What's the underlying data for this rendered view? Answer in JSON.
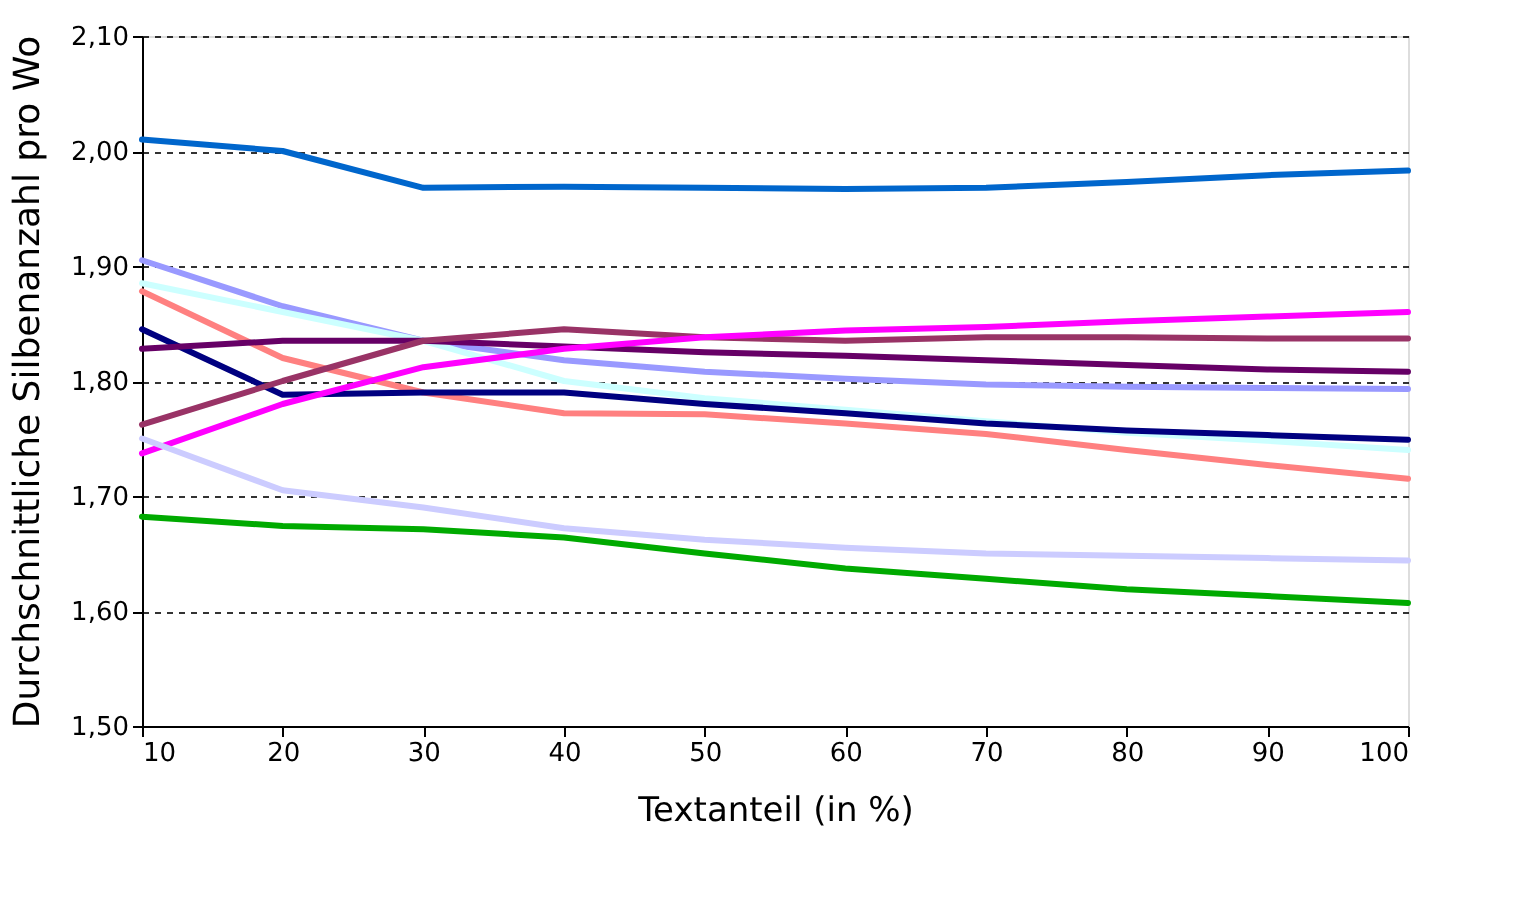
{
  "chart_data": {
    "type": "line",
    "xlabel": "Textanteil (in %)",
    "ylabel": "Durchschnittliche Silbenanzahl pro Wo",
    "x": [
      10,
      20,
      30,
      40,
      50,
      60,
      70,
      80,
      90,
      100
    ],
    "xlim": [
      10,
      100
    ],
    "xticks": [
      10,
      20,
      30,
      40,
      50,
      60,
      70,
      80,
      90,
      100
    ],
    "ylim": [
      1.5,
      2.1
    ],
    "yticks": [
      {
        "value": 1.5,
        "label": "1,50"
      },
      {
        "value": 1.6,
        "label": "1,60"
      },
      {
        "value": 1.7,
        "label": "1,70"
      },
      {
        "value": 1.8,
        "label": "1,80"
      },
      {
        "value": 1.9,
        "label": "1,90"
      },
      {
        "value": 2.0,
        "label": "2,00"
      },
      {
        "value": 2.1,
        "label": "2,10"
      }
    ],
    "grid": "y",
    "legend": false,
    "marker": "none",
    "line_style": "solid",
    "series": [
      {
        "color": "#0066cc",
        "values": [
          2.01,
          2.0,
          1.968,
          1.969,
          1.968,
          1.967,
          1.968,
          1.973,
          1.979,
          1.983
        ]
      },
      {
        "color": "#9999ff",
        "values": [
          1.905,
          1.865,
          1.835,
          1.818,
          1.808,
          1.802,
          1.797,
          1.795,
          1.794,
          1.793
        ]
      },
      {
        "color": "#ccffff",
        "values": [
          1.885,
          1.86,
          1.835,
          1.8,
          1.785,
          1.775,
          1.765,
          1.755,
          1.748,
          1.74
        ]
      },
      {
        "color": "#ff8080",
        "values": [
          1.878,
          1.82,
          1.79,
          1.772,
          1.771,
          1.763,
          1.754,
          1.74,
          1.727,
          1.715
        ]
      },
      {
        "color": "#000080",
        "values": [
          1.845,
          1.788,
          1.79,
          1.79,
          1.78,
          1.772,
          1.763,
          1.757,
          1.753,
          1.749
        ]
      },
      {
        "color": "#660066",
        "values": [
          1.828,
          1.835,
          1.835,
          1.83,
          1.825,
          1.822,
          1.818,
          1.814,
          1.81,
          1.808
        ]
      },
      {
        "color": "#993366",
        "values": [
          1.762,
          1.8,
          1.835,
          1.845,
          1.838,
          1.835,
          1.838,
          1.838,
          1.837,
          1.837
        ]
      },
      {
        "color": "#ff00ff",
        "values": [
          1.737,
          1.78,
          1.812,
          1.828,
          1.838,
          1.844,
          1.847,
          1.852,
          1.856,
          1.86
        ]
      },
      {
        "color": "#ccccff",
        "values": [
          1.75,
          1.705,
          1.69,
          1.672,
          1.662,
          1.655,
          1.65,
          1.648,
          1.646,
          1.644
        ]
      },
      {
        "color": "#00aa00",
        "values": [
          1.682,
          1.674,
          1.671,
          1.664,
          1.65,
          1.637,
          1.628,
          1.619,
          1.613,
          1.607
        ]
      }
    ]
  }
}
